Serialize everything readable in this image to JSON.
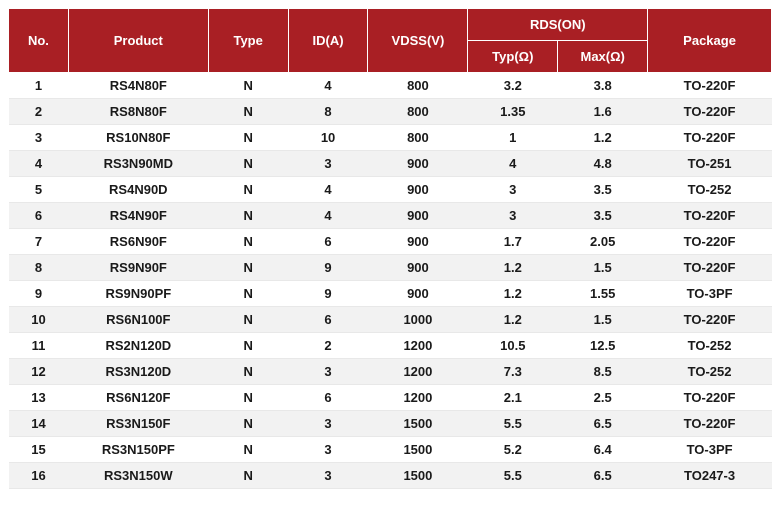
{
  "header": {
    "no": "No.",
    "product": "Product",
    "type": "Type",
    "id": "ID(A)",
    "vdss": "VDSS(V)",
    "rds_group": "RDS(ON)",
    "rds_typ": "Typ(Ω)",
    "rds_max": "Max(Ω)",
    "package": "Package"
  },
  "style": {
    "header_bg": "#a91f24",
    "header_fg": "#ffffff",
    "row_odd_bg": "#ffffff",
    "row_even_bg": "#f2f2f2",
    "border_color": "#ffffff",
    "font_size": 13,
    "cell_font_weight": "bold"
  },
  "columns": [
    "no",
    "product",
    "type",
    "id",
    "vdss",
    "rds_typ",
    "rds_max",
    "package"
  ],
  "rows": [
    {
      "no": "1",
      "product": "RS4N80F",
      "type": "N",
      "id": "4",
      "vdss": "800",
      "rds_typ": "3.2",
      "rds_max": "3.8",
      "package": "TO-220F"
    },
    {
      "no": "2",
      "product": "RS8N80F",
      "type": "N",
      "id": "8",
      "vdss": "800",
      "rds_typ": "1.35",
      "rds_max": "1.6",
      "package": "TO-220F"
    },
    {
      "no": "3",
      "product": "RS10N80F",
      "type": "N",
      "id": "10",
      "vdss": "800",
      "rds_typ": "1",
      "rds_max": "1.2",
      "package": "TO-220F"
    },
    {
      "no": "4",
      "product": "RS3N90MD",
      "type": "N",
      "id": "3",
      "vdss": "900",
      "rds_typ": "4",
      "rds_max": "4.8",
      "package": "TO-251"
    },
    {
      "no": "5",
      "product": "RS4N90D",
      "type": "N",
      "id": "4",
      "vdss": "900",
      "rds_typ": "3",
      "rds_max": "3.5",
      "package": "TO-252"
    },
    {
      "no": "6",
      "product": "RS4N90F",
      "type": "N",
      "id": "4",
      "vdss": "900",
      "rds_typ": "3",
      "rds_max": "3.5",
      "package": "TO-220F"
    },
    {
      "no": "7",
      "product": "RS6N90F",
      "type": "N",
      "id": "6",
      "vdss": "900",
      "rds_typ": "1.7",
      "rds_max": "2.05",
      "package": "TO-220F"
    },
    {
      "no": "8",
      "product": "RS9N90F",
      "type": "N",
      "id": "9",
      "vdss": "900",
      "rds_typ": "1.2",
      "rds_max": "1.5",
      "package": "TO-220F"
    },
    {
      "no": "9",
      "product": "RS9N90PF",
      "type": "N",
      "id": "9",
      "vdss": "900",
      "rds_typ": "1.2",
      "rds_max": "1.55",
      "package": "TO-3PF"
    },
    {
      "no": "10",
      "product": "RS6N100F",
      "type": "N",
      "id": "6",
      "vdss": "1000",
      "rds_typ": "1.2",
      "rds_max": "1.5",
      "package": "TO-220F"
    },
    {
      "no": "11",
      "product": "RS2N120D",
      "type": "N",
      "id": "2",
      "vdss": "1200",
      "rds_typ": "10.5",
      "rds_max": "12.5",
      "package": "TO-252"
    },
    {
      "no": "12",
      "product": "RS3N120D",
      "type": "N",
      "id": "3",
      "vdss": "1200",
      "rds_typ": "7.3",
      "rds_max": "8.5",
      "package": "TO-252"
    },
    {
      "no": "13",
      "product": "RS6N120F",
      "type": "N",
      "id": "6",
      "vdss": "1200",
      "rds_typ": "2.1",
      "rds_max": "2.5",
      "package": "TO-220F"
    },
    {
      "no": "14",
      "product": "RS3N150F",
      "type": "N",
      "id": "3",
      "vdss": "1500",
      "rds_typ": "5.5",
      "rds_max": "6.5",
      "package": "TO-220F"
    },
    {
      "no": "15",
      "product": "RS3N150PF",
      "type": "N",
      "id": "3",
      "vdss": "1500",
      "rds_typ": "5.2",
      "rds_max": "6.4",
      "package": "TO-3PF"
    },
    {
      "no": "16",
      "product": "RS3N150W",
      "type": "N",
      "id": "3",
      "vdss": "1500",
      "rds_typ": "5.5",
      "rds_max": "6.5",
      "package": "TO247-3"
    }
  ]
}
